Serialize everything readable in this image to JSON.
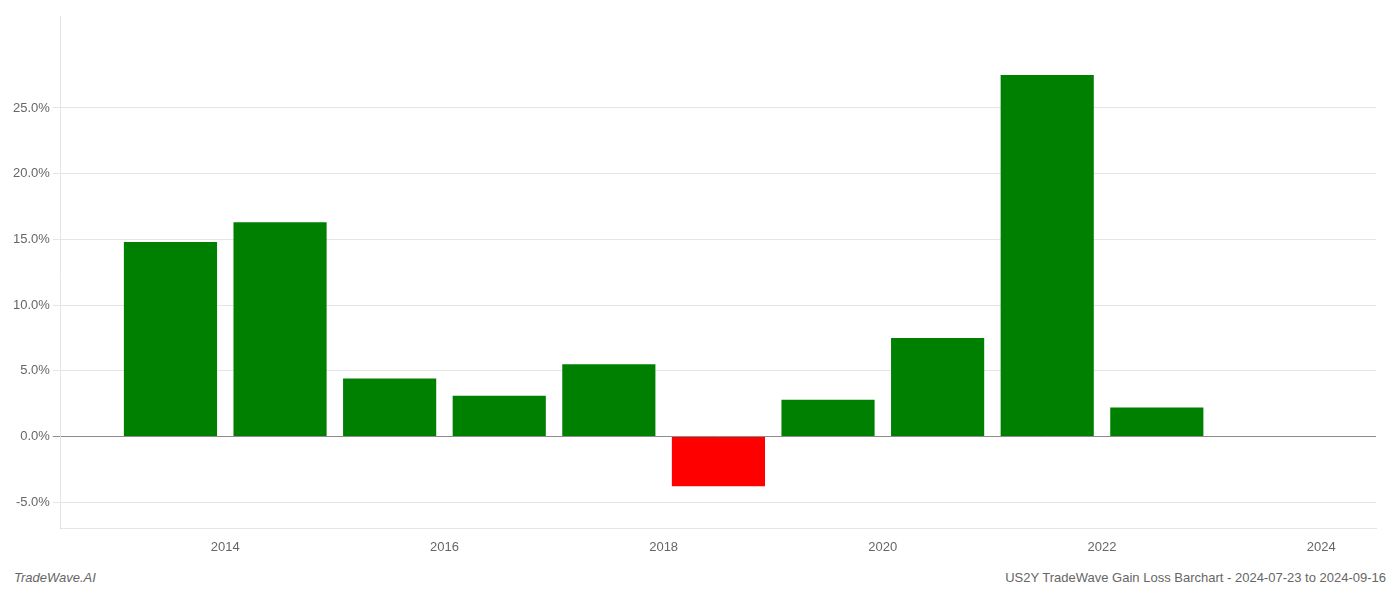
{
  "chart_data": {
    "type": "bar",
    "x": [
      2013.5,
      2014.5,
      2015.5,
      2016.5,
      2017.5,
      2018.5,
      2019.5,
      2020.5,
      2021.5,
      2022.5
    ],
    "values": [
      0.148,
      0.163,
      0.044,
      0.031,
      0.055,
      -0.038,
      0.028,
      0.075,
      0.275,
      0.022
    ],
    "colors": [
      "#008000",
      "#008000",
      "#008000",
      "#008000",
      "#008000",
      "#ff0000",
      "#008000",
      "#008000",
      "#008000",
      "#008000"
    ],
    "xlim": [
      2012.5,
      2024.5
    ],
    "xticks": [
      2014,
      2016,
      2018,
      2020,
      2022,
      2024
    ],
    "ylim": [
      -0.07,
      0.32
    ],
    "yticks": [
      {
        "value": -0.05,
        "label": "-5.0%"
      },
      {
        "value": 0.0,
        "label": "0.0%"
      },
      {
        "value": 0.05,
        "label": "5.0%"
      },
      {
        "value": 0.1,
        "label": "10.0%"
      },
      {
        "value": 0.15,
        "label": "15.0%"
      },
      {
        "value": 0.2,
        "label": "20.0%"
      },
      {
        "value": 0.25,
        "label": "25.0%"
      }
    ],
    "grid": true,
    "annotations": [
      "TradeWave.AI",
      "US2Y TradeWave Gain Loss Barchart - 2024-07-23 to 2024-09-16"
    ]
  }
}
